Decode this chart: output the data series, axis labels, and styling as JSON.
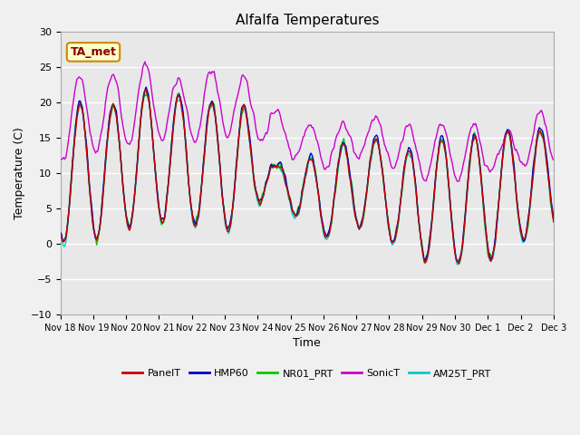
{
  "title": "Alfalfa Temperatures",
  "xlabel": "Time",
  "ylabel": "Temperature (C)",
  "ylim": [
    -10,
    30
  ],
  "annotation": "TA_met",
  "series_colors": {
    "PanelT": "#cc0000",
    "HMP60": "#0000cc",
    "NR01_PRT": "#00cc00",
    "SonicT": "#cc00cc",
    "AM25T_PRT": "#00cccc"
  },
  "bg_color": "#e8e8e8",
  "fig_bg_color": "#f0f0f0",
  "grid_color": "#ffffff",
  "xtick_labels": [
    "Nov 18",
    "Nov 19",
    "Nov 20",
    "Nov 21",
    "Nov 22",
    "Nov 23",
    "Nov 24",
    "Nov 25",
    "Nov 26",
    "Nov 27",
    "Nov 28",
    "Nov 29",
    "Nov 30",
    "Dec 1",
    "Dec 2",
    "Dec 3"
  ],
  "yticks": [
    -10,
    -5,
    0,
    5,
    10,
    15,
    20,
    25,
    30
  ]
}
